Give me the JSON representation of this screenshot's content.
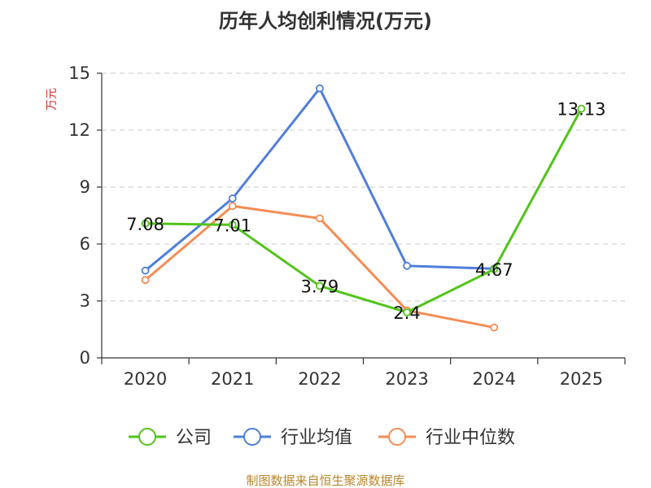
{
  "chart_data": {
    "type": "line",
    "title": "历年人均创利情况(万元)",
    "ylabel": "万元",
    "xlabel": "",
    "categories": [
      "2020",
      "2021",
      "2022",
      "2023",
      "2024",
      "2025"
    ],
    "ylim": [
      0,
      15
    ],
    "yticks": [
      0,
      3,
      6,
      9,
      12,
      15
    ],
    "grid": "horizontal-dashed",
    "legend_position": "bottom",
    "series": [
      {
        "name": "公司",
        "color": "#52c41a",
        "values": [
          7.08,
          7.01,
          3.79,
          2.4,
          4.67,
          13.13
        ],
        "labels": [
          "7.08",
          "7.01",
          "3.79",
          "2.4",
          "4.67",
          "13.13"
        ]
      },
      {
        "name": "行业均值",
        "color": "#4f7fdb",
        "values": [
          4.6,
          8.4,
          14.2,
          4.85,
          4.7,
          null
        ]
      },
      {
        "name": "行业中位数",
        "color": "#f58c55",
        "values": [
          4.1,
          8.0,
          7.35,
          2.5,
          1.6,
          null
        ]
      }
    ]
  },
  "source_text": "制图数据来自恒生聚源数据库"
}
